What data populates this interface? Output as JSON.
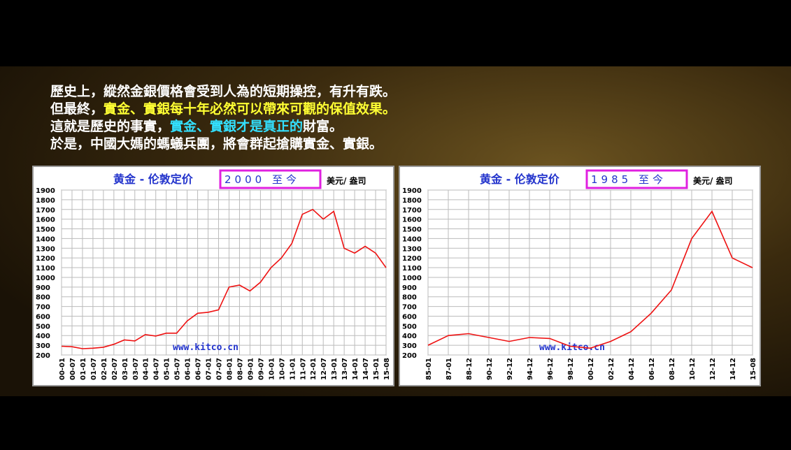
{
  "caption": {
    "lines": [
      {
        "segments": [
          {
            "text": "歷史上，縱然金銀價格會受到人為的短期操控，有升有跌。",
            "color": "#ffffff"
          }
        ]
      },
      {
        "segments": [
          {
            "text": "但最終，",
            "color": "#ffffff"
          },
          {
            "text": "實金、實銀每十年必然可以帶來可觀的保值效果。",
            "color": "#ffff33"
          }
        ]
      },
      {
        "segments": [
          {
            "text": "這就是歷史的事實，",
            "color": "#ffffff"
          },
          {
            "text": "實金、實銀才是真正的",
            "color": "#33e0ff"
          },
          {
            "text": "財富。",
            "color": "#ffffff"
          }
        ]
      },
      {
        "segments": [
          {
            "text": "於是，中國大媽的螞蟻兵團，將會群起搶購實金、實銀。",
            "color": "#ffffff"
          }
        ]
      }
    ]
  },
  "chart_data": [
    {
      "type": "line",
      "title": "黄金 - 伦敦定价",
      "period": "2000 至今",
      "unit": "美元/ 盎司",
      "watermark": "www.kitco.cn",
      "categories": [
        "00-01",
        "00-07",
        "01-01",
        "01-07",
        "02-01",
        "02-07",
        "03-01",
        "03-07",
        "04-01",
        "04-07",
        "05-01",
        "05-07",
        "06-01",
        "06-07",
        "07-01",
        "07-07",
        "08-01",
        "08-07",
        "09-01",
        "09-07",
        "10-01",
        "10-07",
        "11-01",
        "11-07",
        "12-01",
        "12-07",
        "13-01",
        "13-07",
        "14-01",
        "14-07",
        "15-01",
        "15-08"
      ],
      "series": [
        {
          "name": "黄金",
          "color": "#ee1111",
          "values": [
            290,
            285,
            265,
            270,
            280,
            310,
            355,
            345,
            410,
            395,
            425,
            425,
            550,
            630,
            640,
            665,
            900,
            920,
            860,
            950,
            1100,
            1200,
            1350,
            1650,
            1700,
            1600,
            1680,
            1300,
            1250,
            1320,
            1250,
            1100
          ]
        }
      ],
      "ylim": [
        200,
        1900
      ],
      "yticks": [
        200,
        300,
        400,
        500,
        600,
        700,
        800,
        900,
        1000,
        1100,
        1200,
        1300,
        1400,
        1500,
        1600,
        1700,
        1800,
        1900
      ],
      "grid": true
    },
    {
      "type": "line",
      "title": "黄金 - 伦敦定价",
      "period": "1985 至今",
      "unit": "美元/ 盎司",
      "watermark": "www.kitco.cn",
      "categories": [
        "85-01",
        "87-01",
        "88-12",
        "90-12",
        "92-12",
        "94-12",
        "96-12",
        "98-12",
        "00-12",
        "02-12",
        "04-12",
        "06-12",
        "08-12",
        "10-12",
        "12-12",
        "14-12",
        "15-08"
      ],
      "series": [
        {
          "name": "黄金",
          "color": "#ee1111",
          "values": [
            300,
            400,
            420,
            380,
            340,
            380,
            370,
            290,
            270,
            340,
            440,
            630,
            870,
            1400,
            1680,
            1200,
            1100
          ]
        }
      ],
      "ylim": [
        200,
        1900
      ],
      "yticks": [
        200,
        300,
        400,
        500,
        600,
        700,
        800,
        900,
        1000,
        1100,
        1200,
        1300,
        1400,
        1500,
        1600,
        1700,
        1800,
        1900
      ],
      "grid": true
    }
  ]
}
